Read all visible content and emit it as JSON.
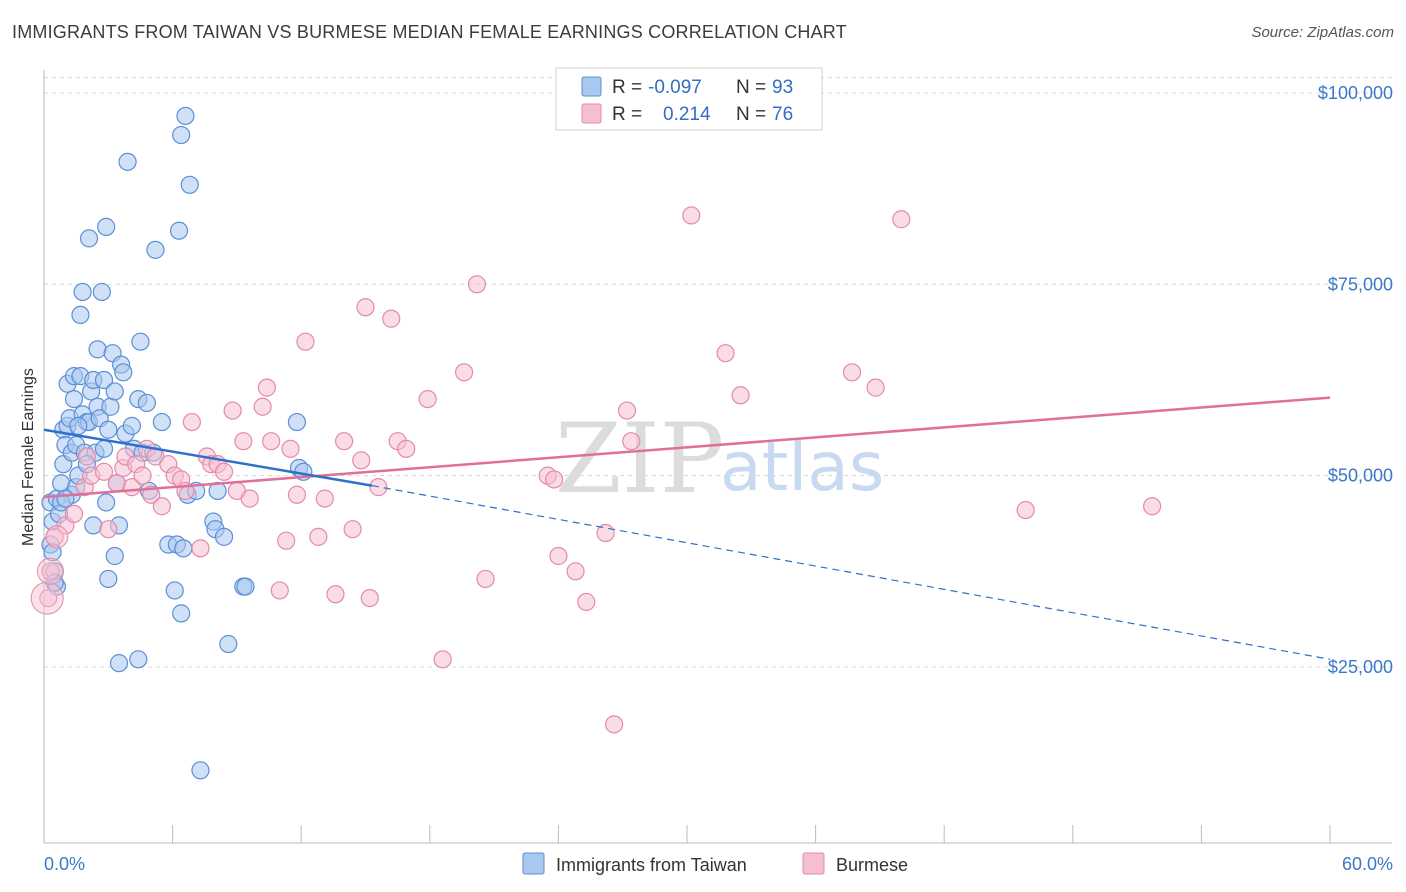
{
  "title": "IMMIGRANTS FROM TAIWAN VS BURMESE MEDIAN FEMALE EARNINGS CORRELATION CHART",
  "source": "Source: ZipAtlas.com",
  "watermark": {
    "zip": "ZIP",
    "atlas": "atlas"
  },
  "colors": {
    "taiwan_fill": "#a9c8f0",
    "taiwan_stroke": "#5b8fd6",
    "taiwan_line": "#3070cc",
    "burmese_fill": "#f6bfd1",
    "burmese_stroke": "#e48aa9",
    "burmese_line": "#e0709a",
    "tick_text": "#3b78c8",
    "grid": "#d8d8d8"
  },
  "legend": {
    "taiwan": {
      "r_label": "R = ",
      "r_value": "-0.097",
      "n_label": "N = ",
      "n_value": "93"
    },
    "burmese": {
      "r_label": "R = ",
      "r_value": "0.214",
      "n_label": "N = ",
      "n_value": "76"
    }
  },
  "chart_data": {
    "type": "scatter",
    "title": "IMMIGRANTS FROM TAIWAN VS BURMESE MEDIAN FEMALE EARNINGS CORRELATION CHART",
    "xlabel": "",
    "ylabel": "Median Female Earnings",
    "xlim": [
      0,
      60
    ],
    "ylim": [
      2000,
      103000
    ],
    "x_tick_labels": [
      "0.0%",
      "60.0%"
    ],
    "y_ticks": [
      25000,
      50000,
      75000,
      100000
    ],
    "y_tick_labels": [
      "$25,000",
      "$50,000",
      "$75,000",
      "$100,000"
    ],
    "grid": true,
    "legend_position": "top-center",
    "series": [
      {
        "name": "Immigrants from Taiwan",
        "r": -0.097,
        "n": 93,
        "trend": {
          "x": [
            0,
            15.3
          ],
          "y": [
            56000,
            48700
          ],
          "dashed_to": [
            60,
            26000
          ]
        },
        "points": [
          [
            0.3,
            46500
          ],
          [
            0.4,
            44000
          ],
          [
            0.3,
            41000
          ],
          [
            0.4,
            40000
          ],
          [
            0.5,
            37500
          ],
          [
            0.6,
            35500
          ],
          [
            0.6,
            47000
          ],
          [
            0.7,
            45000
          ],
          [
            0.8,
            49000
          ],
          [
            0.9,
            51500
          ],
          [
            0.9,
            56000
          ],
          [
            1.0,
            54000
          ],
          [
            1.1,
            56500
          ],
          [
            1.1,
            62000
          ],
          [
            1.2,
            57500
          ],
          [
            1.3,
            53000
          ],
          [
            1.3,
            47500
          ],
          [
            1.4,
            60000
          ],
          [
            1.4,
            63000
          ],
          [
            1.5,
            48500
          ],
          [
            1.5,
            54000
          ],
          [
            1.6,
            50000
          ],
          [
            1.7,
            63000
          ],
          [
            1.7,
            71000
          ],
          [
            1.8,
            74000
          ],
          [
            1.8,
            58000
          ],
          [
            1.9,
            53000
          ],
          [
            2.0,
            57000
          ],
          [
            2.1,
            57000
          ],
          [
            2.1,
            81000
          ],
          [
            2.2,
            61000
          ],
          [
            2.3,
            62500
          ],
          [
            2.3,
            43500
          ],
          [
            2.4,
            53000
          ],
          [
            2.5,
            66500
          ],
          [
            2.5,
            59000
          ],
          [
            2.6,
            57500
          ],
          [
            2.7,
            74000
          ],
          [
            2.8,
            53500
          ],
          [
            2.8,
            62500
          ],
          [
            2.9,
            82500
          ],
          [
            2.9,
            46500
          ],
          [
            3.0,
            36500
          ],
          [
            3.1,
            59000
          ],
          [
            3.2,
            66000
          ],
          [
            3.3,
            61000
          ],
          [
            3.3,
            39500
          ],
          [
            3.4,
            49000
          ],
          [
            3.5,
            43500
          ],
          [
            3.5,
            25500
          ],
          [
            3.6,
            64500
          ],
          [
            3.7,
            63500
          ],
          [
            3.8,
            55500
          ],
          [
            3.9,
            91000
          ],
          [
            4.1,
            56500
          ],
          [
            4.2,
            53500
          ],
          [
            4.4,
            26000
          ],
          [
            4.4,
            60000
          ],
          [
            4.5,
            67500
          ],
          [
            4.6,
            53000
          ],
          [
            4.8,
            59500
          ],
          [
            4.9,
            48000
          ],
          [
            5.1,
            53000
          ],
          [
            5.2,
            79500
          ],
          [
            5.5,
            57000
          ],
          [
            5.8,
            41000
          ],
          [
            6.1,
            35000
          ],
          [
            6.2,
            41000
          ],
          [
            6.3,
            82000
          ],
          [
            6.4,
            94500
          ],
          [
            6.4,
            32000
          ],
          [
            6.5,
            40500
          ],
          [
            6.6,
            97000
          ],
          [
            6.7,
            47500
          ],
          [
            6.8,
            88000
          ],
          [
            7.1,
            48000
          ],
          [
            7.3,
            11500
          ],
          [
            7.9,
            44000
          ],
          [
            8.0,
            43000
          ],
          [
            8.1,
            48000
          ],
          [
            8.4,
            42000
          ],
          [
            8.6,
            28000
          ],
          [
            9.3,
            35500
          ],
          [
            9.4,
            35500
          ],
          [
            11.8,
            57000
          ],
          [
            11.9,
            51000
          ],
          [
            12.1,
            50500
          ],
          [
            0.5,
            36000
          ],
          [
            0.8,
            46500
          ],
          [
            1.0,
            47000
          ],
          [
            1.6,
            56500
          ],
          [
            2.0,
            51500
          ],
          [
            3.0,
            56000
          ]
        ]
      },
      {
        "name": "Burmese",
        "r": 0.214,
        "n": 76,
        "trend": {
          "x": [
            0,
            60
          ],
          "y": [
            47200,
            60200
          ]
        },
        "points": [
          [
            0.2,
            34000
          ],
          [
            0.3,
            37500
          ],
          [
            0.5,
            42000
          ],
          [
            1.0,
            43500
          ],
          [
            1.4,
            45000
          ],
          [
            1.9,
            48500
          ],
          [
            2.2,
            50000
          ],
          [
            2.8,
            50500
          ],
          [
            3.0,
            43000
          ],
          [
            3.4,
            49000
          ],
          [
            3.7,
            51000
          ],
          [
            3.8,
            52500
          ],
          [
            4.1,
            48500
          ],
          [
            4.3,
            51500
          ],
          [
            4.6,
            50000
          ],
          [
            4.8,
            53500
          ],
          [
            5.0,
            47500
          ],
          [
            5.2,
            52500
          ],
          [
            5.5,
            46000
          ],
          [
            5.8,
            51500
          ],
          [
            6.1,
            50000
          ],
          [
            6.4,
            49500
          ],
          [
            6.6,
            48000
          ],
          [
            6.9,
            57000
          ],
          [
            7.3,
            40500
          ],
          [
            7.6,
            52500
          ],
          [
            7.8,
            51500
          ],
          [
            8.1,
            51500
          ],
          [
            8.4,
            50500
          ],
          [
            8.8,
            58500
          ],
          [
            9.0,
            48000
          ],
          [
            9.3,
            54500
          ],
          [
            9.6,
            47000
          ],
          [
            10.2,
            59000
          ],
          [
            10.4,
            61500
          ],
          [
            10.6,
            54500
          ],
          [
            11.0,
            35000
          ],
          [
            11.3,
            41500
          ],
          [
            11.5,
            53500
          ],
          [
            11.8,
            47500
          ],
          [
            12.2,
            67500
          ],
          [
            12.8,
            42000
          ],
          [
            13.1,
            47000
          ],
          [
            13.6,
            34500
          ],
          [
            14.0,
            54500
          ],
          [
            14.4,
            43000
          ],
          [
            14.8,
            52000
          ],
          [
            15.0,
            72000
          ],
          [
            15.2,
            34000
          ],
          [
            15.6,
            48500
          ],
          [
            16.2,
            70500
          ],
          [
            16.5,
            54500
          ],
          [
            16.9,
            53500
          ],
          [
            17.9,
            60000
          ],
          [
            18.6,
            26000
          ],
          [
            19.6,
            63500
          ],
          [
            20.2,
            75000
          ],
          [
            20.6,
            36500
          ],
          [
            23.5,
            50000
          ],
          [
            23.8,
            49500
          ],
          [
            24.0,
            39500
          ],
          [
            24.8,
            37500
          ],
          [
            25.3,
            33500
          ],
          [
            26.2,
            42500
          ],
          [
            26.6,
            17500
          ],
          [
            27.2,
            58500
          ],
          [
            27.4,
            54500
          ],
          [
            30.2,
            84000
          ],
          [
            31.8,
            66000
          ],
          [
            32.5,
            60500
          ],
          [
            37.7,
            63500
          ],
          [
            38.8,
            61500
          ],
          [
            40.0,
            83500
          ],
          [
            45.8,
            45500
          ],
          [
            51.7,
            46000
          ],
          [
            2.0,
            52500
          ]
        ]
      }
    ]
  },
  "bottom_legend": {
    "taiwan": "Immigrants from Taiwan",
    "burmese": "Burmese"
  }
}
